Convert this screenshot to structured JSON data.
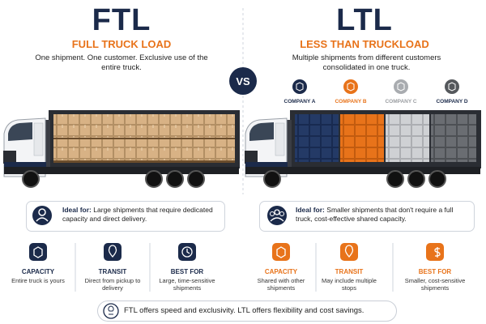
{
  "ftl": {
    "title": "FTL",
    "subtitle": "FULL TRUCK LOAD",
    "description": "One shipment. One customer. Exclusive use of the entire truck.",
    "ideal_label": "Ideal for:",
    "ideal_text": "Large shipments that require dedicated capacity and direct delivery.",
    "features": [
      {
        "title": "CAPACITY",
        "text": "Entire truck is yours"
      },
      {
        "title": "TRANSIT",
        "text": "Direct from pickup to delivery"
      },
      {
        "title": "BEST FOR",
        "text": "Large, time-sensitive shipments"
      }
    ]
  },
  "vs": "VS",
  "ltl": {
    "title": "LTL",
    "subtitle": "LESS THAN TRUCKLOAD",
    "description": "Multiple shipments from different customers consolidated in one truck.",
    "companies": [
      "COMPANY A",
      "COMPANY B",
      "COMPANY C",
      "COMPANY D"
    ],
    "ideal_label": "Ideal for:",
    "ideal_text": "Smaller shipments that don't require a full truck, cost-effective shared capacity.",
    "features": [
      {
        "title": "CAPACITY",
        "text": "Shared with other shipments"
      },
      {
        "title": "TRANSIT",
        "text": "May include multiple stops"
      },
      {
        "title": "BEST FOR",
        "text": "Smaller, cost-sensitive shipments"
      }
    ]
  },
  "footer": "FTL offers speed and exclusivity. LTL offers flexibility and cost savings."
}
